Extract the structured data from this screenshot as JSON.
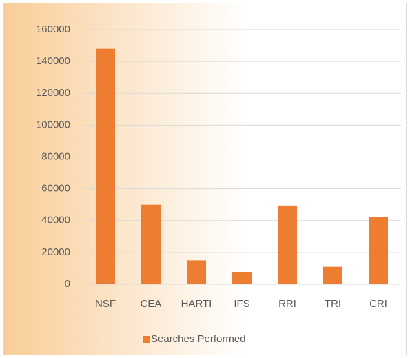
{
  "chart_data": {
    "type": "bar",
    "categories": [
      "NSF",
      "CEA",
      "HARTI",
      "IFS",
      "RRI",
      "TRI",
      "CRI"
    ],
    "series": [
      {
        "name": "Searches Performed",
        "color": "#ed7d31",
        "values": [
          148000,
          50000,
          15000,
          7500,
          49500,
          11000,
          42500
        ]
      }
    ],
    "ylim": [
      0,
      160000
    ],
    "yticks": [
      0,
      20000,
      40000,
      60000,
      80000,
      100000,
      120000,
      140000,
      160000
    ],
    "grid": true,
    "legend": "bottom"
  }
}
